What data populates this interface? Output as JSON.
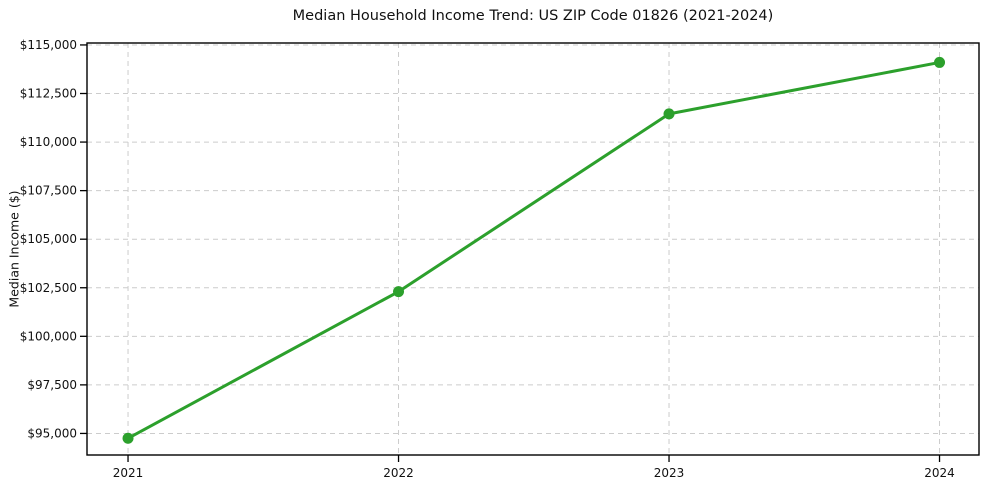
{
  "chart_data": {
    "type": "line",
    "title": "Median Household Income Trend: US ZIP Code 01826 (2021-2024)",
    "xlabel": "",
    "ylabel": "Median Income ($)",
    "categories": [
      "2021",
      "2022",
      "2023",
      "2024"
    ],
    "series": [
      {
        "name": "Median Household Income",
        "values": [
          94750,
          102300,
          111450,
          114100
        ]
      }
    ],
    "ylim": [
      93890,
      115100
    ],
    "yticks": [
      95000,
      97500,
      100000,
      102500,
      105000,
      107500,
      110000,
      112500,
      115000
    ],
    "ytick_labels": [
      "$95,000",
      "$97,500",
      "$100,000",
      "$102,500",
      "$105,000",
      "$107,500",
      "$110,000",
      "$112,500",
      "$115,000"
    ],
    "grid": true,
    "legend": "none",
    "line_color": "#2ca02c",
    "marker": "circle",
    "marker_color": "#2ca02c",
    "grid_color": "#cccccc",
    "spine_color": "#000000",
    "text_color": "#111111",
    "background_color": "#ffffff"
  }
}
